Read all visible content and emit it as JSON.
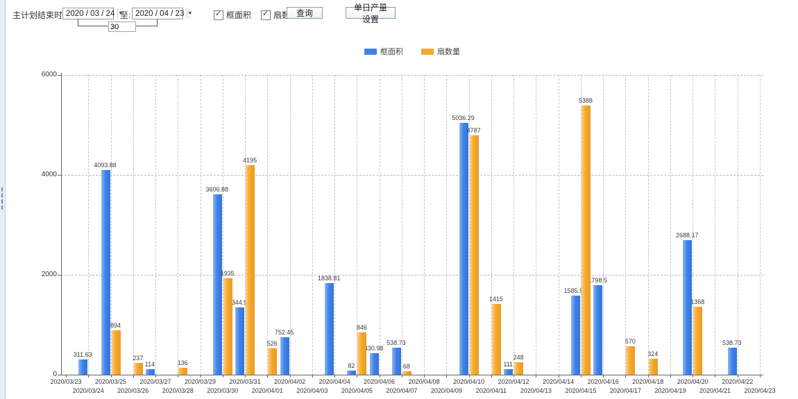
{
  "toolbar": {
    "plan_end_label": "主计划结束时间:",
    "date_from": "2020 / 03 / 24",
    "to_label": "至:",
    "date_to": "2020 / 04 / 23",
    "interval_value": "30",
    "checkbox_frame_label": "框面积",
    "checkbox_fan_label": "扇数量",
    "checkbox_frame_checked": true,
    "checkbox_fan_checked": true,
    "query_button_label": "查询",
    "daily_output_button_label": "单日产量设置"
  },
  "legend": {
    "items": [
      {
        "label": "框面积",
        "color": "#3f83e8"
      },
      {
        "label": "扇数量",
        "color": "#f5a72e"
      }
    ]
  },
  "colors": {
    "bar_blue": "#3f83e8",
    "bar_orange": "#f5a72e",
    "axis": "#666666",
    "grid": "#bbbbbb"
  },
  "chart_data": {
    "type": "bar",
    "title": "",
    "xlabel": "",
    "ylabel": "",
    "ylim": [
      0,
      6000
    ],
    "yticks": [
      0,
      2000,
      4000,
      6000
    ],
    "grid": true,
    "legend_position": "top-center",
    "x_label_layout": "staggered-two-rows",
    "categories": [
      "2020/03/23",
      "2020/03/24",
      "2020/03/25",
      "2020/03/26",
      "2020/03/27",
      "2020/03/28",
      "2020/03/29",
      "2020/03/30",
      "2020/03/31",
      "2020/04/01",
      "2020/04/02",
      "2020/04/03",
      "2020/04/04",
      "2020/04/05",
      "2020/04/06",
      "2020/04/07",
      "2020/04/08",
      "2020/04/09",
      "2020/04/10",
      "2020/04/11",
      "2020/04/12",
      "2020/04/13",
      "2020/04/14",
      "2020/04/15",
      "2020/04/16",
      "2020/04/17",
      "2020/04/18",
      "2020/04/19",
      "2020/04/20",
      "2020/04/21",
      "2020/04/22",
      "2020/04/23"
    ],
    "series": [
      {
        "name": "框面积",
        "color": "#3f83e8",
        "values": [
          null,
          311.63,
          4093.88,
          null,
          114,
          null,
          null,
          3606.88,
          1344.95,
          null,
          752.45,
          null,
          1838.81,
          82,
          430.98,
          538.73,
          null,
          null,
          5036.29,
          null,
          111,
          null,
          null,
          1585.96,
          1798.5,
          null,
          null,
          null,
          2688.17,
          null,
          538.73,
          null
        ]
      },
      {
        "name": "扇数量",
        "color": "#f5a72e",
        "values": [
          null,
          null,
          894,
          237,
          null,
          136,
          null,
          1935,
          4195,
          526,
          null,
          null,
          null,
          846,
          null,
          68,
          null,
          null,
          4787,
          1415,
          248,
          null,
          null,
          5388,
          null,
          570,
          324,
          null,
          1368,
          null,
          null,
          null
        ]
      }
    ]
  }
}
